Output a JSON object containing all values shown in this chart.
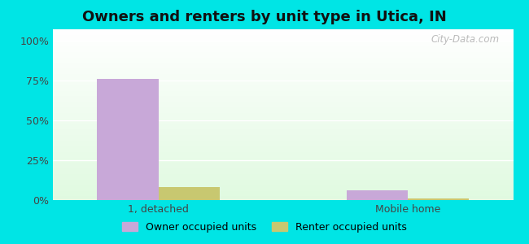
{
  "title": "Owners and renters by unit type in Utica, IN",
  "categories": [
    "1, detached",
    "Mobile home"
  ],
  "owner_values": [
    76,
    6
  ],
  "renter_values": [
    8,
    1
  ],
  "owner_color": "#c8a8d8",
  "renter_color": "#c8c870",
  "background_color": "#00e5e5",
  "yticks": [
    0,
    25,
    50,
    75,
    100
  ],
  "ytick_labels": [
    "0%",
    "25%",
    "50%",
    "75%",
    "100%"
  ],
  "legend_owner": "Owner occupied units",
  "legend_renter": "Renter occupied units",
  "watermark": "City-Data.com",
  "bar_width": 0.32,
  "x_positions": [
    0.0,
    1.3
  ],
  "xlim": [
    -0.55,
    1.85
  ],
  "ylim": [
    0,
    107
  ]
}
